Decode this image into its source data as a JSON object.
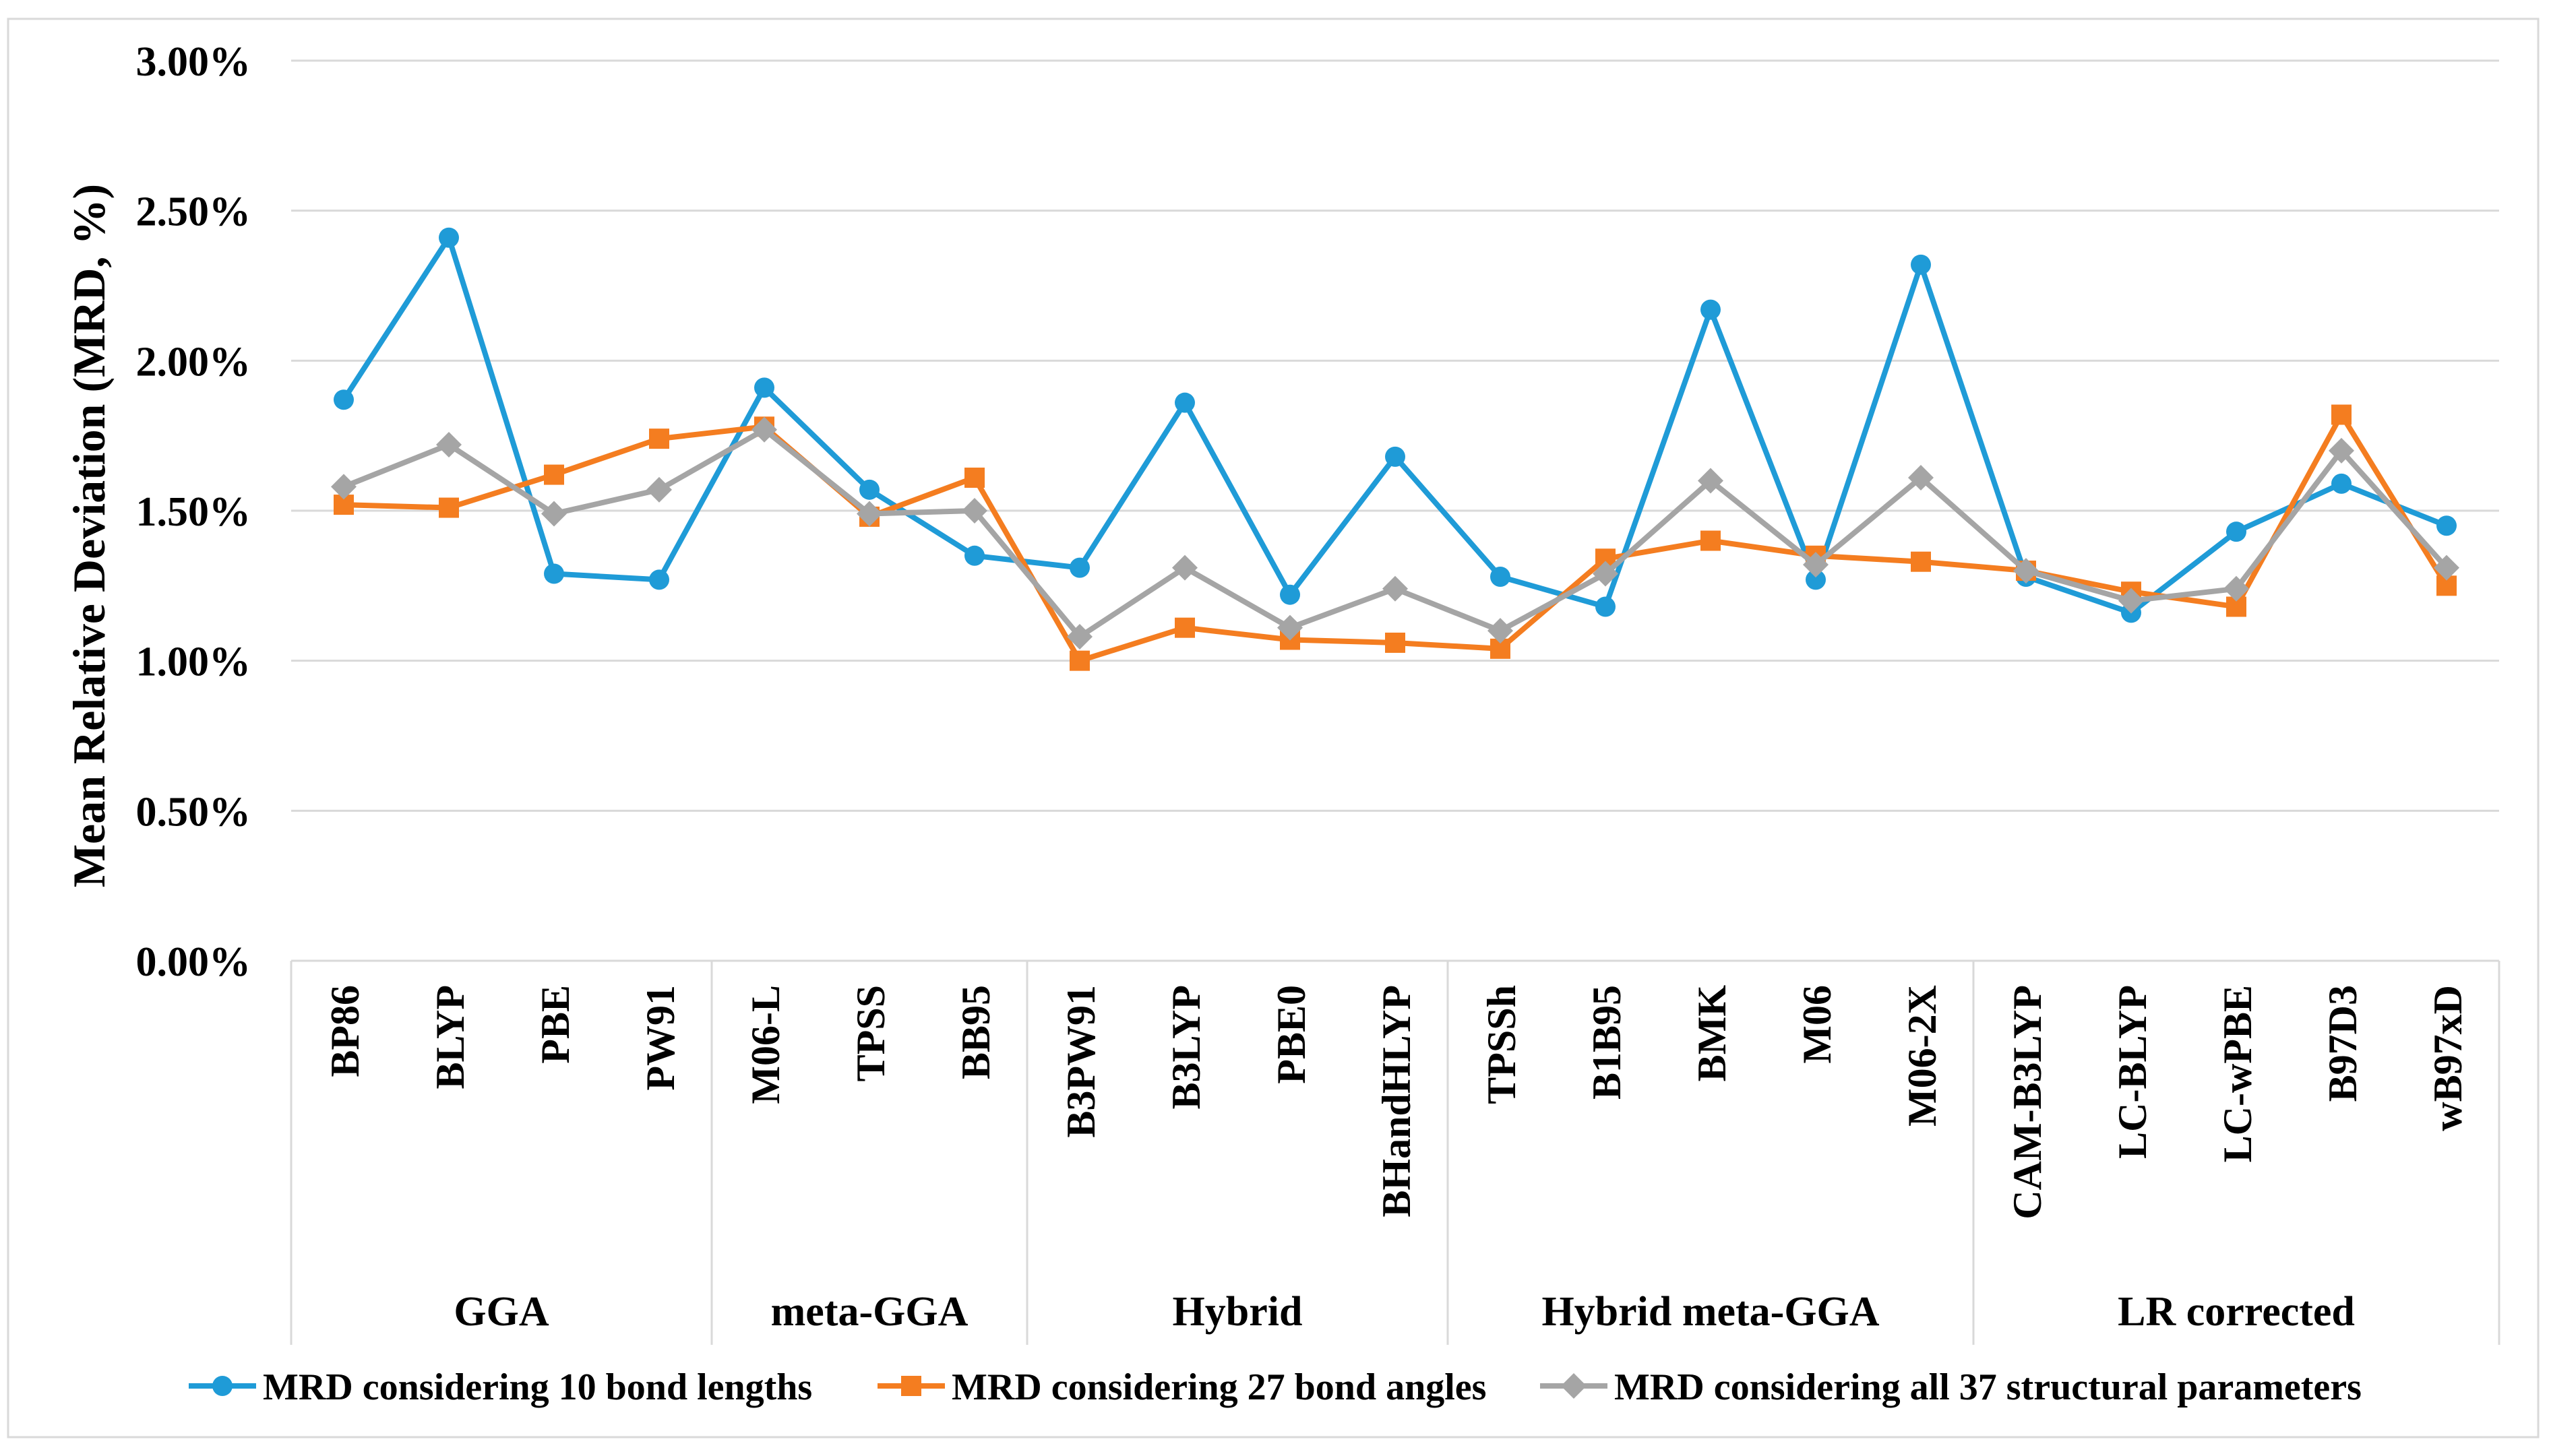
{
  "chart_data": {
    "type": "line",
    "title": "",
    "ylabel": "Mean Relative Deviation (MRD, %)",
    "xlabel": "",
    "ylim": [
      0,
      3.0
    ],
    "ytick_values": [
      0,
      0.5,
      1.0,
      1.5,
      2.0,
      2.5,
      3.0
    ],
    "ytick_labels": [
      "0.00%",
      "0.50%",
      "1.00%",
      "1.50%",
      "2.00%",
      "2.50%",
      "3.00%"
    ],
    "grid": true,
    "legend_position": "bottom",
    "categories": [
      "BP86",
      "BLYP",
      "PBE",
      "PW91",
      "M06-L",
      "TPSS",
      "BB95",
      "B3PW91",
      "B3LYP",
      "PBE0",
      "BHandHLYP",
      "TPSSh",
      "B1B95",
      "BMK",
      "M06",
      "M06-2X",
      "CAM-B3LYP",
      "LC-BLYP",
      "LC-wPBE",
      "B97D3",
      "wB97xD"
    ],
    "groups": [
      {
        "label": "GGA",
        "count": 4
      },
      {
        "label": "meta-GGA",
        "count": 3
      },
      {
        "label": "Hybrid",
        "count": 4
      },
      {
        "label": "Hybrid meta-GGA",
        "count": 5
      },
      {
        "label": "LR corrected",
        "count": 5
      }
    ],
    "series": [
      {
        "name": "MRD considering 10 bond lengths",
        "color": "#1f9bd7",
        "marker": "circle",
        "values": [
          1.87,
          2.41,
          1.29,
          1.27,
          1.91,
          1.57,
          1.35,
          1.31,
          1.86,
          1.22,
          1.68,
          1.28,
          1.18,
          2.17,
          1.27,
          2.32,
          1.28,
          1.16,
          1.43,
          1.59,
          1.45
        ]
      },
      {
        "name": "MRD considering 27 bond angles",
        "color": "#f47d20",
        "marker": "square",
        "values": [
          1.52,
          1.51,
          1.62,
          1.74,
          1.78,
          1.48,
          1.61,
          1.0,
          1.11,
          1.07,
          1.06,
          1.04,
          1.34,
          1.4,
          1.35,
          1.33,
          1.3,
          1.23,
          1.18,
          1.82,
          1.25
        ]
      },
      {
        "name": "MRD considering all 37 structural parameters",
        "color": "#a5a5a5",
        "marker": "diamond",
        "values": [
          1.58,
          1.72,
          1.49,
          1.57,
          1.77,
          1.49,
          1.5,
          1.08,
          1.31,
          1.11,
          1.24,
          1.1,
          1.29,
          1.6,
          1.32,
          1.61,
          1.3,
          1.2,
          1.24,
          1.7,
          1.31
        ]
      }
    ]
  }
}
